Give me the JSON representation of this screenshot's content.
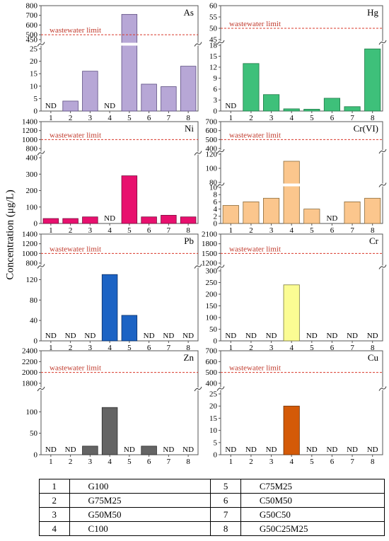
{
  "y_axis_label": "Concentration (μg/L)",
  "limit_label": "wastewater limit",
  "nd_label": "ND",
  "legend": [
    {
      "num": "1",
      "code": "G100"
    },
    {
      "num": "2",
      "code": "G75M25"
    },
    {
      "num": "3",
      "code": "G50M50"
    },
    {
      "num": "4",
      "code": "C100"
    },
    {
      "num": "5",
      "code": "C75M25"
    },
    {
      "num": "6",
      "code": "C50M50"
    },
    {
      "num": "7",
      "code": "G50C50"
    },
    {
      "num": "8",
      "code": "G50C25M25"
    }
  ],
  "colors": {
    "limit": "#d9382a",
    "limit_text": "#c0392b"
  },
  "chart_data": [
    {
      "type": "bar",
      "title": "As",
      "categories": [
        "1",
        "2",
        "3",
        "4",
        "5",
        "6",
        "7",
        "8"
      ],
      "values": [
        0,
        4,
        16,
        0,
        710,
        10.8,
        9.8,
        18
      ],
      "nd": [
        true,
        false,
        false,
        true,
        false,
        false,
        false,
        false
      ],
      "limit": 500,
      "color": "#b7a7d6",
      "edge": "#5c4d80",
      "lower": {
        "range": [
          0,
          25
        ],
        "ticks": [
          "0",
          "5",
          "10",
          "15",
          "20",
          "25"
        ]
      },
      "upper": {
        "range": [
          450,
          800
        ],
        "ticks": [
          "450",
          "500",
          "600",
          "700",
          "800"
        ]
      }
    },
    {
      "type": "bar",
      "title": "Hg",
      "categories": [
        "1",
        "2",
        "3",
        "4",
        "5",
        "6",
        "7",
        "8"
      ],
      "values": [
        0,
        13,
        4.5,
        0.6,
        0.5,
        3.5,
        1.2,
        17
      ],
      "nd": [
        true,
        false,
        false,
        false,
        false,
        false,
        false,
        false
      ],
      "limit": 50,
      "color": "#3ec07a",
      "edge": "#1f7a47",
      "lower": {
        "range": [
          0,
          18
        ],
        "ticks": [
          "0",
          "3",
          "6",
          "9",
          "12",
          "15",
          "18"
        ]
      },
      "upper": {
        "range": [
          45,
          60
        ],
        "ticks": [
          "45",
          "50",
          "55",
          "60"
        ]
      }
    },
    {
      "type": "bar",
      "title": "Ni",
      "categories": [
        "1",
        "2",
        "3",
        "4",
        "5",
        "6",
        "7",
        "8"
      ],
      "values": [
        30,
        30,
        40,
        0,
        290,
        40,
        50,
        40
      ],
      "nd": [
        false,
        false,
        false,
        true,
        false,
        false,
        false,
        false
      ],
      "limit": 1000,
      "color": "#e8106e",
      "edge": "#7a0a3c",
      "lower": {
        "range": [
          0,
          400
        ],
        "ticks": [
          "0",
          "100",
          "200",
          "300",
          "400"
        ]
      },
      "upper": {
        "range": [
          800,
          1400
        ],
        "ticks": [
          "800",
          "1000",
          "1200",
          "1400"
        ]
      }
    },
    {
      "type": "bar",
      "title": "Cr(VI)",
      "categories": [
        "1",
        "2",
        "3",
        "4",
        "5",
        "6",
        "7",
        "8"
      ],
      "values": [
        5,
        6,
        7,
        110,
        4,
        0,
        6,
        7
      ],
      "nd": [
        false,
        false,
        false,
        false,
        false,
        true,
        false,
        false
      ],
      "limit": 500,
      "color": "#fbc68d",
      "edge": "#8a6a3a",
      "lower": {
        "range": [
          0,
          10
        ],
        "ticks": [
          "0",
          "2",
          "4",
          "6",
          "8",
          "10"
        ]
      },
      "middle": {
        "range": [
          80,
          120
        ],
        "ticks": [
          "80",
          "100",
          "120"
        ]
      },
      "upper": {
        "range": [
          400,
          700
        ],
        "ticks": [
          "400",
          "500",
          "600",
          "700"
        ]
      }
    },
    {
      "type": "bar",
      "title": "Pb",
      "categories": [
        "1",
        "2",
        "3",
        "4",
        "5",
        "6",
        "7",
        "8"
      ],
      "values": [
        0,
        0,
        0,
        130,
        50,
        0,
        0,
        0
      ],
      "nd": [
        true,
        true,
        true,
        false,
        false,
        true,
        true,
        true
      ],
      "limit": 1000,
      "color": "#1c63c4",
      "edge": "#0b2f66",
      "lower": {
        "range": [
          0,
          140
        ],
        "ticks": [
          "0",
          "40",
          "80",
          "120"
        ]
      },
      "upper": {
        "range": [
          800,
          1400
        ],
        "ticks": [
          "800",
          "1000",
          "1200",
          "1400"
        ]
      }
    },
    {
      "type": "bar",
      "title": "Cr",
      "categories": [
        "1",
        "2",
        "3",
        "4",
        "5",
        "6",
        "7",
        "8"
      ],
      "values": [
        0,
        0,
        0,
        240,
        0,
        0,
        0,
        0
      ],
      "nd": [
        true,
        true,
        true,
        false,
        true,
        true,
        true,
        true
      ],
      "limit": 1500,
      "color": "#fbfc93",
      "edge": "#7a7a3a",
      "lower": {
        "range": [
          0,
          300
        ],
        "ticks": [
          "0",
          "50",
          "100",
          "150",
          "200",
          "250",
          "300"
        ]
      },
      "upper": {
        "range": [
          1200,
          2100
        ],
        "ticks": [
          "1200",
          "1500",
          "1800",
          "2100"
        ]
      }
    },
    {
      "type": "bar",
      "title": "Zn",
      "categories": [
        "1",
        "2",
        "3",
        "4",
        "5",
        "6",
        "7",
        "8"
      ],
      "values": [
        0,
        0,
        20,
        110,
        0,
        20,
        0,
        0
      ],
      "nd": [
        true,
        true,
        false,
        false,
        true,
        false,
        true,
        true
      ],
      "limit": 2000,
      "color": "#646464",
      "edge": "#2a2a2a",
      "lower": {
        "range": [
          0,
          140
        ],
        "ticks": [
          "0",
          "50",
          "100"
        ]
      },
      "upper": {
        "range": [
          1800,
          2400
        ],
        "ticks": [
          "1800",
          "2000",
          "2200",
          "2400"
        ]
      }
    },
    {
      "type": "bar",
      "title": "Cu",
      "categories": [
        "1",
        "2",
        "3",
        "4",
        "5",
        "6",
        "7",
        "8"
      ],
      "values": [
        0,
        0,
        0,
        20,
        0,
        0,
        0,
        0
      ],
      "nd": [
        true,
        true,
        true,
        false,
        true,
        true,
        true,
        true
      ],
      "limit": 500,
      "color": "#d45a08",
      "edge": "#6a2d04",
      "lower": {
        "range": [
          0,
          25
        ],
        "ticks": [
          "0",
          "5",
          "10",
          "15",
          "20",
          "25"
        ]
      },
      "upper": {
        "range": [
          400,
          700
        ],
        "ticks": [
          "400",
          "500",
          "600",
          "700"
        ]
      }
    }
  ]
}
